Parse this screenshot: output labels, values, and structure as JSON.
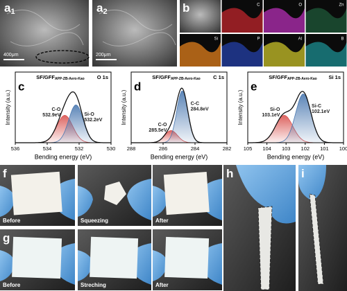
{
  "panels": {
    "a1": {
      "letter": "a",
      "index": "1",
      "scale_bar": "400μm"
    },
    "a2": {
      "letter": "a",
      "index": "2",
      "scale_bar": "200μm"
    },
    "b": {
      "letter": "b",
      "maps": [
        "C",
        "O",
        "Zn",
        "Si",
        "P",
        "Al",
        "B"
      ]
    },
    "f": {
      "letter": "f",
      "captions": [
        "Before",
        "Squeezing",
        "After"
      ]
    },
    "g": {
      "letter": "g",
      "captions": [
        "Before",
        "Streching",
        "After"
      ]
    },
    "h": {
      "letter": "h"
    },
    "i": {
      "letter": "i"
    }
  },
  "chart_data": [
    {
      "type": "xps",
      "panel": "c",
      "title": "SF/GFF",
      "title_sub": "APP-ZB-Aero-Kao",
      "tag": "O 1s",
      "x_label": "Bending energy (eV)",
      "y_label": "Intensity (a.u.)",
      "xlim": [
        536,
        530
      ],
      "xticks": [
        536,
        534,
        532,
        530
      ],
      "ylim": [
        0,
        1
      ],
      "peaks": [
        {
          "name": "C-O",
          "label": "532.9eV",
          "position": 532.9,
          "height": 0.45,
          "width": 0.5,
          "color": "#d9534f"
        },
        {
          "name": "Si-O",
          "label": "532.2eV",
          "position": 532.2,
          "height": 0.62,
          "width": 0.45,
          "color": "#4a78b0"
        }
      ]
    },
    {
      "type": "xps",
      "panel": "d",
      "title": "SF/GFF",
      "title_sub": "APP-ZB-Aero-Kao",
      "tag": "C 1s",
      "x_label": "Bending energy (eV)",
      "y_label": "Intensity (a.u.)",
      "xlim": [
        288,
        282
      ],
      "xticks": [
        288,
        286,
        284,
        282
      ],
      "ylim": [
        0,
        1
      ],
      "peaks": [
        {
          "name": "C-O",
          "label": "285.5eV",
          "position": 285.5,
          "height": 0.2,
          "width": 0.4,
          "color": "#d9534f"
        },
        {
          "name": "C-C",
          "label": "284.8eV",
          "position": 284.8,
          "height": 0.85,
          "width": 0.35,
          "color": "#4a78b0"
        }
      ]
    },
    {
      "type": "xps",
      "panel": "e",
      "title": "SF/GFF",
      "title_sub": "APP-ZB-Aero-Kao",
      "tag": "Si 1s",
      "x_label": "Bending energy (eV)",
      "y_label": "Intensity (a.u.)",
      "xlim": [
        105,
        100
      ],
      "xticks": [
        105,
        104,
        103,
        102,
        101,
        100
      ],
      "ylim": [
        0,
        1
      ],
      "peaks": [
        {
          "name": "Si-O",
          "label": "103.1eV",
          "position": 103.1,
          "height": 0.45,
          "width": 0.45,
          "color": "#d9534f"
        },
        {
          "name": "Si-C",
          "label": "102.1eV",
          "position": 102.1,
          "height": 0.8,
          "width": 0.4,
          "color": "#4a78b0"
        }
      ]
    }
  ]
}
